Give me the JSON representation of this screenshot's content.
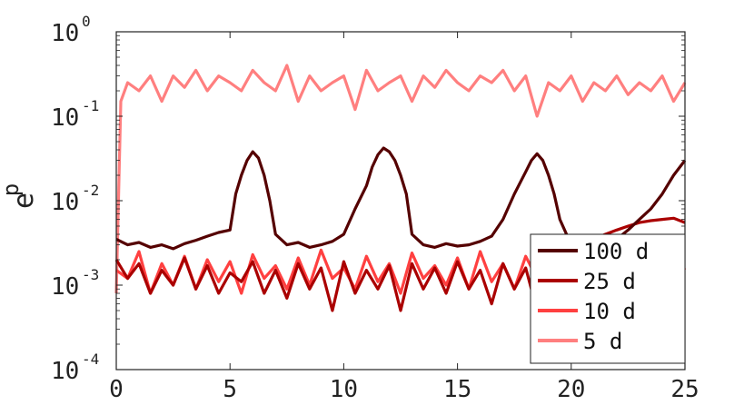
{
  "chart_data": {
    "type": "line",
    "ylabel_main": "e",
    "ylabel_sub": "p",
    "xlabel": "",
    "title": "",
    "y_scale": "log",
    "xlim": [
      0,
      25
    ],
    "ylim": [
      0.0001,
      1
    ],
    "x_ticks": [
      {
        "value": 0,
        "label": "0"
      },
      {
        "value": 5,
        "label": "5"
      },
      {
        "value": 10,
        "label": "10"
      },
      {
        "value": 15,
        "label": "15"
      },
      {
        "value": 20,
        "label": "20"
      },
      {
        "value": 25,
        "label": "25"
      }
    ],
    "y_ticks": [
      {
        "value": 1,
        "base": "10",
        "exp": "0"
      },
      {
        "value": 0.1,
        "base": "10",
        "exp": "-1"
      },
      {
        "value": 0.01,
        "base": "10",
        "exp": "-2"
      },
      {
        "value": 0.001,
        "base": "10",
        "exp": "-3"
      },
      {
        "value": 0.0001,
        "base": "10",
        "exp": "-4"
      }
    ],
    "grid": false,
    "legend_position": "bottom-right",
    "series": [
      {
        "name": "5 d",
        "color": "#ff7f7f",
        "x": [
          0,
          0.2,
          0.5,
          1,
          1.5,
          2,
          2.5,
          3,
          3.5,
          4,
          4.5,
          5,
          5.5,
          6,
          6.5,
          7,
          7.5,
          8,
          8.5,
          9,
          9.5,
          10,
          10.5,
          11,
          11.5,
          12,
          12.5,
          13,
          13.5,
          14,
          14.5,
          15,
          15.5,
          16,
          16.5,
          17,
          17.5,
          18,
          18.5,
          19,
          19.5,
          20,
          20.5,
          21,
          21.5,
          22,
          22.5,
          23,
          23.5,
          24,
          24.5,
          25
        ],
        "y": [
          0.0008,
          0.15,
          0.25,
          0.2,
          0.3,
          0.15,
          0.3,
          0.22,
          0.35,
          0.2,
          0.3,
          0.25,
          0.2,
          0.35,
          0.25,
          0.2,
          0.4,
          0.15,
          0.3,
          0.2,
          0.25,
          0.3,
          0.12,
          0.35,
          0.2,
          0.25,
          0.3,
          0.15,
          0.3,
          0.22,
          0.35,
          0.25,
          0.2,
          0.3,
          0.25,
          0.35,
          0.2,
          0.3,
          0.1,
          0.25,
          0.2,
          0.3,
          0.15,
          0.25,
          0.2,
          0.3,
          0.18,
          0.25,
          0.2,
          0.3,
          0.15,
          0.25
        ]
      },
      {
        "name": "10 d",
        "color": "#ff4040",
        "x": [
          0,
          0.5,
          1,
          1.5,
          2,
          2.5,
          3,
          3.5,
          4,
          4.5,
          5,
          5.5,
          6,
          6.5,
          7,
          7.5,
          8,
          8.5,
          9,
          9.5,
          10,
          10.5,
          11,
          11.5,
          12,
          12.5,
          13,
          13.5,
          14,
          14.5,
          15,
          15.5,
          16,
          16.5,
          17,
          17.5,
          18,
          18.5,
          19,
          19.5,
          20,
          20.5,
          21,
          21.5,
          22,
          22.5,
          23,
          23.5,
          24,
          24.5,
          25
        ],
        "y": [
          0.0015,
          0.0012,
          0.0025,
          0.0008,
          0.0018,
          0.001,
          0.0022,
          0.0009,
          0.002,
          0.0011,
          0.0019,
          0.0008,
          0.0023,
          0.0012,
          0.0017,
          0.0009,
          0.0021,
          0.001,
          0.0026,
          0.0012,
          0.0016,
          0.0009,
          0.0022,
          0.0011,
          0.0018,
          0.0008,
          0.0024,
          0.0012,
          0.0017,
          0.001,
          0.0021,
          0.0009,
          0.0025,
          0.0011,
          0.0018,
          0.0009,
          0.0022,
          0.0012,
          0.0017,
          0.001,
          0.0026,
          0.0011,
          0.0019,
          0.0009,
          0.0023,
          0.0012,
          0.0017,
          0.001,
          0.0022,
          0.0011,
          0.0016
        ]
      },
      {
        "name": "25 d",
        "color": "#aa0000",
        "x": [
          0,
          0.5,
          1,
          1.5,
          2,
          2.5,
          3,
          3.5,
          4,
          4.5,
          5,
          5.5,
          6,
          6.5,
          7,
          7.5,
          8,
          8.5,
          9,
          9.5,
          10,
          10.5,
          11,
          11.5,
          12,
          12.5,
          13,
          13.5,
          14,
          14.5,
          15,
          15.5,
          16,
          16.5,
          17,
          17.5,
          18,
          18.5,
          19,
          19.5,
          20,
          20.5,
          21,
          21.5,
          22,
          22.5,
          23,
          23.5,
          24,
          24.5,
          25
        ],
        "y": [
          0.002,
          0.0012,
          0.0018,
          0.0008,
          0.0015,
          0.001,
          0.0021,
          0.0009,
          0.0017,
          0.0008,
          0.0014,
          0.0011,
          0.0019,
          0.0008,
          0.0015,
          0.0007,
          0.0018,
          0.0009,
          0.0016,
          0.0005,
          0.0019,
          0.0008,
          0.0015,
          0.0009,
          0.0017,
          0.0005,
          0.0018,
          0.0009,
          0.0016,
          0.0008,
          0.0019,
          0.0009,
          0.0015,
          0.0006,
          0.0018,
          0.0009,
          0.0016,
          0.0005,
          0.0019,
          0.0009,
          0.0025,
          0.003,
          0.0035,
          0.004,
          0.0045,
          0.005,
          0.0055,
          0.0058,
          0.006,
          0.0062,
          0.0055
        ]
      },
      {
        "name": "100 d",
        "color": "#550000",
        "x": [
          0,
          0.5,
          1,
          1.5,
          2,
          2.5,
          3,
          3.5,
          4,
          4.5,
          5,
          5.25,
          5.5,
          5.75,
          6,
          6.25,
          6.5,
          6.75,
          7,
          7.5,
          8,
          8.5,
          9,
          9.5,
          10,
          10.5,
          11,
          11.25,
          11.5,
          11.75,
          12,
          12.25,
          12.5,
          12.75,
          13,
          13.5,
          14,
          14.5,
          15,
          15.5,
          16,
          16.5,
          17,
          17.5,
          18,
          18.25,
          18.5,
          18.75,
          19,
          19.25,
          19.5,
          20,
          20.5,
          21,
          21.5,
          22,
          22.5,
          23,
          23.5,
          24,
          24.5,
          25
        ],
        "y": [
          0.0035,
          0.003,
          0.0032,
          0.0028,
          0.003,
          0.0027,
          0.0031,
          0.0034,
          0.0038,
          0.0042,
          0.0045,
          0.012,
          0.02,
          0.03,
          0.038,
          0.032,
          0.02,
          0.01,
          0.004,
          0.003,
          0.0032,
          0.0028,
          0.003,
          0.0033,
          0.004,
          0.008,
          0.015,
          0.025,
          0.035,
          0.042,
          0.038,
          0.03,
          0.02,
          0.012,
          0.004,
          0.003,
          0.0028,
          0.0031,
          0.0029,
          0.003,
          0.0033,
          0.0038,
          0.006,
          0.012,
          0.022,
          0.03,
          0.036,
          0.03,
          0.02,
          0.012,
          0.006,
          0.003,
          0.0028,
          0.003,
          0.0033,
          0.0035,
          0.0045,
          0.006,
          0.008,
          0.012,
          0.02,
          0.03
        ]
      }
    ],
    "legend_order": [
      "100 d",
      "25 d",
      "10 d",
      "5 d"
    ]
  }
}
